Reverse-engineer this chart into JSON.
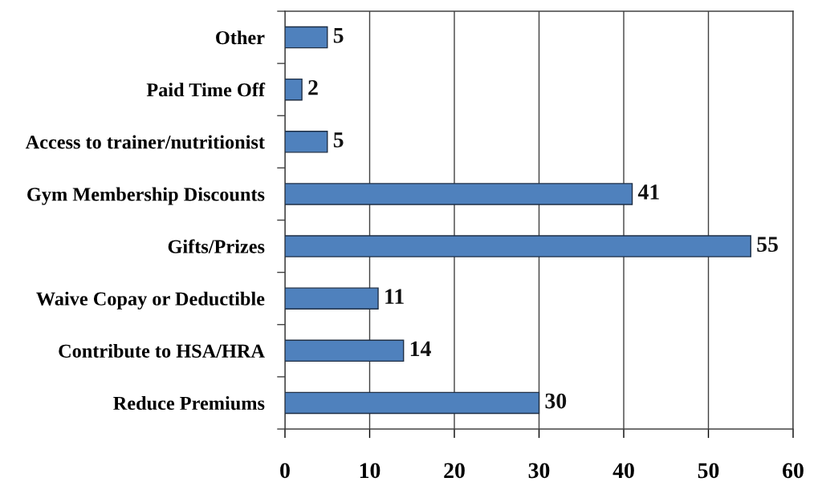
{
  "chart_data": {
    "type": "bar",
    "orientation": "horizontal",
    "categories": [
      "Other",
      "Paid Time Off",
      "Access to trainer/nutritionist",
      "Gym Membership Discounts",
      "Gifts/Prizes",
      "Waive Copay or Deductible",
      "Contribute to HSA/HRA",
      "Reduce Premiums"
    ],
    "values": [
      5,
      2,
      5,
      41,
      55,
      11,
      14,
      30
    ],
    "color": "#4f81bd",
    "xlim": [
      0,
      60
    ],
    "xticks": [
      0,
      10,
      20,
      30,
      40,
      50,
      60
    ],
    "grid": "x",
    "data_labels": true
  }
}
